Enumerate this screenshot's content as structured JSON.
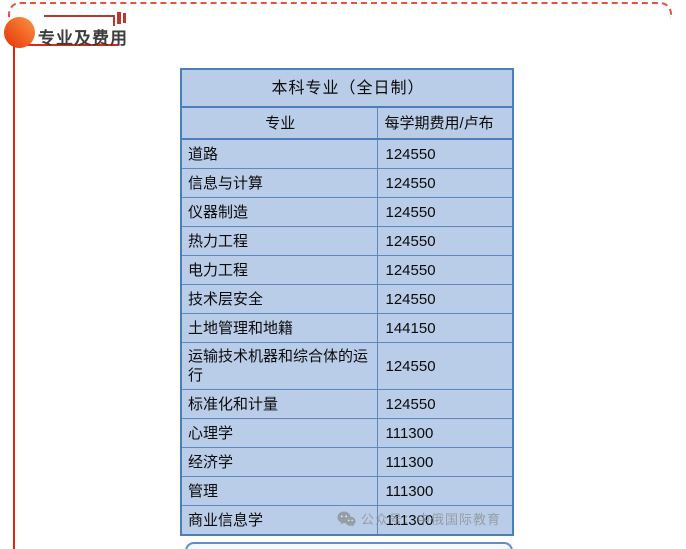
{
  "header": {
    "title": "专业及费用"
  },
  "table": {
    "title": "本科专业（全日制）",
    "columns": [
      "专业",
      "每学期费用/卢布"
    ],
    "rows": [
      {
        "major": "道路",
        "fee": "124550"
      },
      {
        "major": "信息与计算",
        "fee": "124550"
      },
      {
        "major": "仪器制造",
        "fee": "124550"
      },
      {
        "major": "热力工程",
        "fee": "124550"
      },
      {
        "major": "电力工程",
        "fee": "124550"
      },
      {
        "major": "技术层安全",
        "fee": "124550"
      },
      {
        "major": "土地管理和地籍",
        "fee": "144150"
      },
      {
        "major": "运输技术机器和综合体的运行",
        "fee": "124550"
      },
      {
        "major": "标准化和计量",
        "fee": "124550"
      },
      {
        "major": "心理学",
        "fee": "111300"
      },
      {
        "major": "经济学",
        "fee": "111300"
      },
      {
        "major": "管理",
        "fee": "111300"
      },
      {
        "major": "商业信息学",
        "fee": "111300"
      }
    ]
  },
  "watermark": {
    "icon": "wechat-icon",
    "text": "公众号：中俄国际教育"
  },
  "colors": {
    "accent_red": "#dd2616",
    "dashed_red": "#e8513f",
    "bracket_red": "#b7392c",
    "circle_gradient_start": "#e73b0d",
    "circle_gradient_end": "#fa8c3c",
    "table_fill": "#b9cce8",
    "table_border": "#5b8ac0",
    "table_outer_border": "#4a7ebc",
    "watermark_gray": "#8c9196",
    "title_text": "#3d3d3d"
  }
}
